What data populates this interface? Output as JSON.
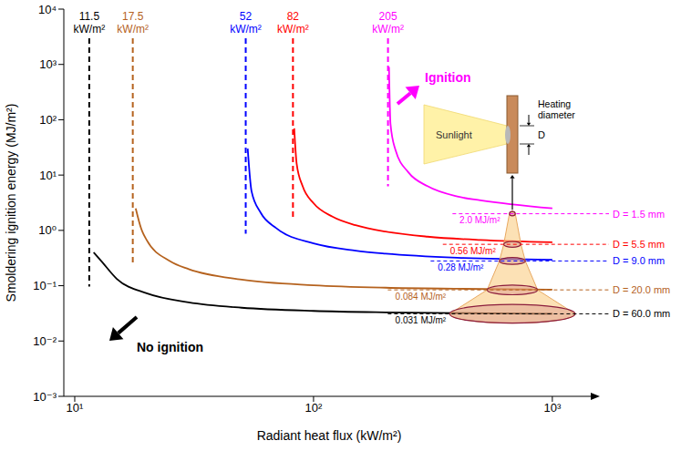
{
  "chart_data": {
    "type": "line",
    "x_label": "Radiant heat flux (kW/m²)",
    "y_label": "Smoldering ignition energy (MJ/m²)",
    "log": true,
    "grid": false,
    "xlim": [
      9,
      1500
    ],
    "ylim": [
      0.001,
      10000
    ],
    "xticks": [
      {
        "value": 10,
        "label": "10¹"
      },
      {
        "value": 100,
        "label": "10²"
      },
      {
        "value": 1000,
        "label": "10³"
      }
    ],
    "yticks": [
      {
        "value": 0.001,
        "label": "10⁻³"
      },
      {
        "value": 0.01,
        "label": "10⁻²"
      },
      {
        "value": 0.1,
        "label": "10⁻¹"
      },
      {
        "value": 1,
        "label": "10⁰"
      },
      {
        "value": 10,
        "label": "10¹"
      },
      {
        "value": 100,
        "label": "10²"
      },
      {
        "value": 1000,
        "label": "10³"
      },
      {
        "value": 10000,
        "label": "10⁴"
      }
    ],
    "series": [
      {
        "color": "#000000",
        "x": [
          12,
          13,
          15,
          20,
          30,
          50,
          100,
          200,
          400,
          1000
        ],
        "values": [
          0.4,
          0.27,
          0.133,
          0.073,
          0.05,
          0.04,
          0.035,
          0.033,
          0.032,
          0.031
        ],
        "threshold": 11.5,
        "threshold_label": "11.5 kW/m²",
        "energy": 0.031,
        "energy_label": "0.031 MJ/m²",
        "diameter": 60.0,
        "diameter_label": "D = 60.0 mm"
      },
      {
        "color": "#b5621e",
        "x": [
          18,
          19,
          20,
          25,
          30,
          50,
          100,
          200,
          400,
          1000
        ],
        "values": [
          2.5,
          1.06,
          0.67,
          0.28,
          0.2,
          0.129,
          0.102,
          0.092,
          0.088,
          0.085
        ],
        "threshold": 17.5,
        "threshold_label": "17.5 kW/m²",
        "energy": 0.084,
        "energy_label": "0.084 MJ/m²",
        "diameter": 20.0,
        "diameter_label": "D = 20.0 mm"
      },
      {
        "color": "#0000ff",
        "x": [
          53,
          55,
          60,
          70,
          100,
          150,
          200,
          400,
          1000
        ],
        "values": [
          30,
          5.1,
          2.1,
          1.09,
          0.58,
          0.43,
          0.38,
          0.32,
          0.295
        ],
        "threshold": 52,
        "threshold_label": "52 kW/m²",
        "energy": 0.28,
        "energy_label": "0.28 MJ/m²",
        "diameter": 9.0,
        "diameter_label": "D = 9.0 mm"
      },
      {
        "color": "#ff0000",
        "x": [
          83,
          85,
          90,
          100,
          120,
          150,
          200,
          300,
          500,
          1000
        ],
        "values": [
          70,
          15.9,
          6.3,
          3.1,
          1.77,
          1.24,
          0.95,
          0.77,
          0.67,
          0.61
        ],
        "threshold": 82,
        "threshold_label": "82 kW/m²",
        "energy": 0.56,
        "energy_label": "0.56 MJ/m²",
        "diameter": 5.5,
        "diameter_label": "D = 5.5 mm"
      },
      {
        "color": "#ff00ff",
        "x": [
          207,
          210,
          220,
          250,
          300,
          400,
          500,
          1000
        ],
        "values": [
          900,
          84,
          29,
          11.1,
          6.3,
          4.1,
          3.5,
          2.5
        ],
        "threshold": 205,
        "threshold_label": "205 kW/m²",
        "energy": 2.0,
        "energy_label": "2.0 MJ/m²",
        "diameter": 1.5,
        "diameter_label": "D = 1.5 mm"
      }
    ],
    "annotations": {
      "ignition": "Ignition",
      "no_ignition": "No ignition",
      "sunlight": "Sunlight",
      "heating_diameter": "Heating diameter",
      "d": "D"
    }
  }
}
